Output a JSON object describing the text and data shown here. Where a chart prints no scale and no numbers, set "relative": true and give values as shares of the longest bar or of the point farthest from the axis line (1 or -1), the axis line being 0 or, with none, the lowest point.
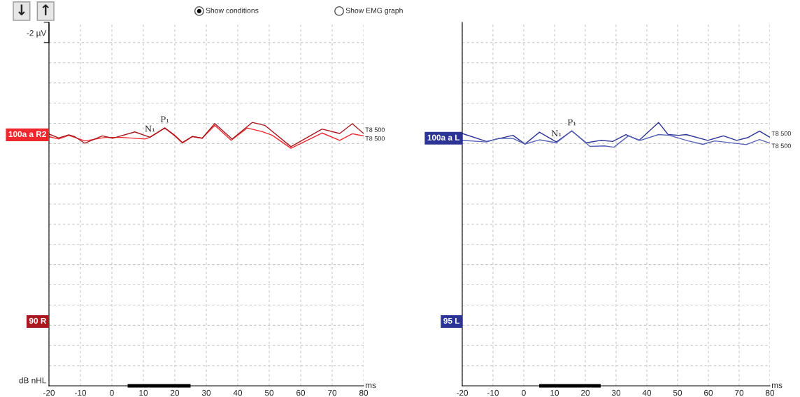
{
  "chart_data": [
    {
      "type": "line",
      "relative": true,
      "xlabel": "ms",
      "xlim": [
        -20,
        80
      ],
      "xticks": [
        -20,
        -10,
        0,
        10,
        20,
        30,
        40,
        50,
        60,
        70,
        80
      ],
      "grid": true,
      "line_style": "solid",
      "marker": "none",
      "annotations": [
        "↓",
        "↑",
        "Show conditions",
        "Show EMG graph",
        "-2 µV",
        "dB nHL",
        "90 R",
        {
          "text": "N₁",
          "x": 12.1,
          "y": 0.944
        },
        {
          "text": "P₁",
          "x": 16.8,
          "y": 0.979
        },
        {
          "text": "100a a R2",
          "x": -20,
          "y": 0.953
        }
      ],
      "series": [
        {
          "color": "#000000",
          "x": [
            5,
            25
          ],
          "values": [
            0,
            0
          ]
        },
        {
          "name": "T8 500",
          "color": "#f0282d",
          "x": [
            -20,
            -16.9,
            -13.7,
            -8.6,
            -2.2,
            3.3,
            10.5,
            12.1,
            16.8,
            20,
            22.4,
            25.6,
            28.7,
            32.7,
            37.9,
            43,
            47.8,
            51,
            56.9,
            66.8,
            72.4,
            76.4,
            80
          ],
          "values": [
            0.946,
            0.937,
            0.951,
            0.93,
            0.943,
            0.943,
            0.937,
            0.944,
            0.979,
            0.949,
            0.922,
            0.946,
            0.94,
            0.989,
            0.932,
            0.979,
            0.965,
            0.951,
            0.902,
            0.96,
            0.932,
            0.957,
            0.949
          ]
        },
        {
          "name": "T8 500",
          "color": "#a8181e",
          "x": [
            -20,
            -16.9,
            -13.7,
            -11.8,
            -8.6,
            -3,
            0.2,
            7.3,
            12.1,
            16.8,
            20,
            22.4,
            25.6,
            28.7,
            32.7,
            38.2,
            44.6,
            48.6,
            56.9,
            66.8,
            72.4,
            76.4,
            80
          ],
          "values": [
            0.956,
            0.941,
            0.953,
            0.946,
            0.921,
            0.949,
            0.94,
            0.964,
            0.944,
            0.979,
            0.951,
            0.924,
            0.947,
            0.94,
            0.996,
            0.937,
            1.0,
            0.989,
            0.908,
            0.975,
            0.958,
            0.995,
            0.958
          ]
        }
      ]
    },
    {
      "type": "line",
      "relative": true,
      "xlabel": "ms",
      "xlim": [
        -20,
        80
      ],
      "xticks": [
        -20,
        -10,
        0,
        10,
        20,
        30,
        40,
        50,
        60,
        70,
        80
      ],
      "grid": true,
      "line_style": "solid",
      "marker": "none",
      "annotations": [
        "95 L",
        {
          "text": "N₁",
          "x": 10.6,
          "y": 0.926
        },
        {
          "text": "P₁",
          "x": 15.6,
          "y": 0.968
        },
        {
          "text": "100a a L",
          "x": -20,
          "y": 0.94
        }
      ],
      "series": [
        {
          "color": "#000000",
          "x": [
            5,
            25
          ],
          "values": [
            0,
            0
          ]
        },
        {
          "name": "T8 500",
          "color": "#2b3494",
          "x": [
            -20,
            -12.1,
            -3.5,
            0.4,
            5.1,
            10.6,
            15.6,
            20.3,
            25,
            28.9,
            33.2,
            37.5,
            43.8,
            46.9,
            50.4,
            52.8,
            59.8,
            64.9,
            69.2,
            72.7,
            76.6,
            80
          ],
          "values": [
            0.958,
            0.928,
            0.951,
            0.918,
            0.963,
            0.926,
            0.968,
            0.923,
            0.932,
            0.928,
            0.954,
            0.932,
            1.0,
            0.954,
            0.951,
            0.954,
            0.932,
            0.949,
            0.932,
            0.942,
            0.967,
            0.944
          ]
        },
        {
          "name": "T8 500",
          "color": "#5663b8",
          "x": [
            -20,
            -12.1,
            -8.2,
            -3.5,
            0.4,
            5.1,
            10.6,
            15.6,
            21.5,
            26.2,
            29.3,
            34,
            37.9,
            43.8,
            47.3,
            53.5,
            58.2,
            62.1,
            72.3,
            76.6,
            80
          ],
          "values": [
            0.932,
            0.926,
            0.94,
            0.939,
            0.918,
            0.934,
            0.923,
            0.968,
            0.909,
            0.911,
            0.906,
            0.949,
            0.932,
            0.954,
            0.951,
            0.93,
            0.917,
            0.93,
            0.916,
            0.935,
            0.921
          ]
        }
      ]
    }
  ]
}
